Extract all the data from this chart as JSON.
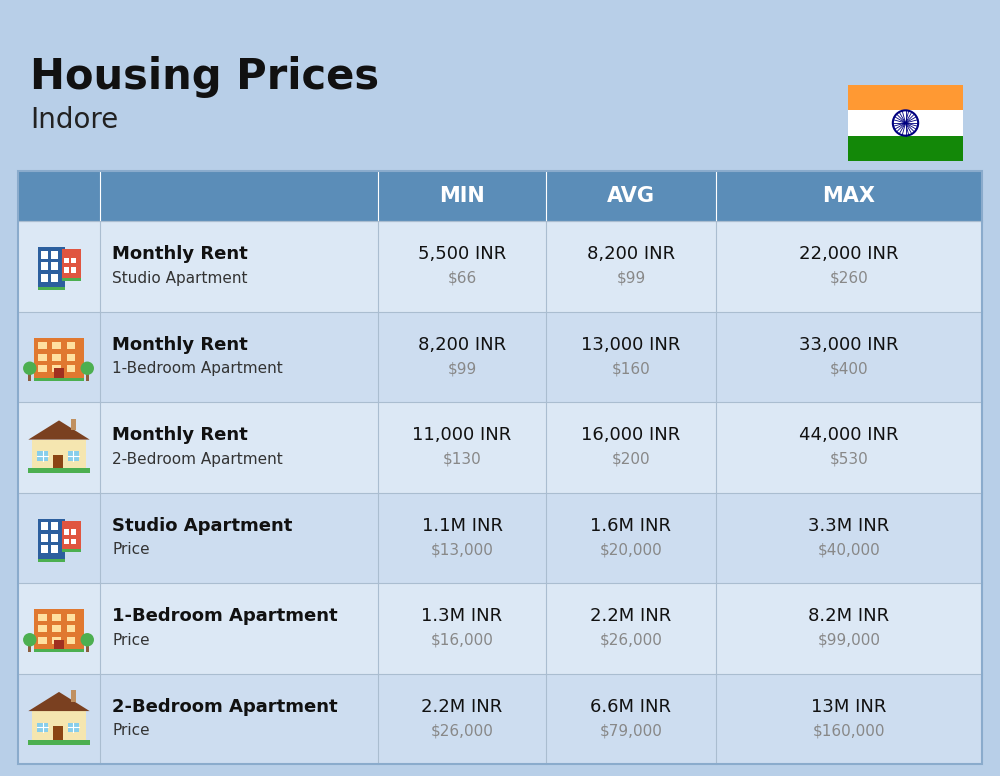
{
  "title": "Housing Prices",
  "subtitle": "Indore",
  "bg_color": "#b8cfe8",
  "header_bg": "#5b8db8",
  "header_text_color": "#ffffff",
  "row_bg_even": "#dce8f5",
  "row_bg_odd": "#cdddf0",
  "grid_line_color": "#aabdd0",
  "columns": [
    "MIN",
    "AVG",
    "MAX"
  ],
  "rows": [
    {
      "bold_label": "Monthly Rent",
      "sub_label": "Studio Apartment",
      "min_inr": "5,500 INR",
      "min_usd": "$66",
      "avg_inr": "8,200 INR",
      "avg_usd": "$99",
      "max_inr": "22,000 INR",
      "max_usd": "$260",
      "icon_type": "studio_blue"
    },
    {
      "bold_label": "Monthly Rent",
      "sub_label": "1-Bedroom Apartment",
      "min_inr": "8,200 INR",
      "min_usd": "$99",
      "avg_inr": "13,000 INR",
      "avg_usd": "$160",
      "max_inr": "33,000 INR",
      "max_usd": "$400",
      "icon_type": "bedroom1_orange"
    },
    {
      "bold_label": "Monthly Rent",
      "sub_label": "2-Bedroom Apartment",
      "min_inr": "11,000 INR",
      "min_usd": "$130",
      "avg_inr": "16,000 INR",
      "avg_usd": "$200",
      "max_inr": "44,000 INR",
      "max_usd": "$530",
      "icon_type": "bedroom2_house"
    },
    {
      "bold_label": "Studio Apartment",
      "sub_label": "Price",
      "min_inr": "1.1M INR",
      "min_usd": "$13,000",
      "avg_inr": "1.6M INR",
      "avg_usd": "$20,000",
      "max_inr": "3.3M INR",
      "max_usd": "$40,000",
      "icon_type": "studio_blue"
    },
    {
      "bold_label": "1-Bedroom Apartment",
      "sub_label": "Price",
      "min_inr": "1.3M INR",
      "min_usd": "$16,000",
      "avg_inr": "2.2M INR",
      "avg_usd": "$26,000",
      "max_inr": "8.2M INR",
      "max_usd": "$99,000",
      "icon_type": "bedroom1_orange"
    },
    {
      "bold_label": "2-Bedroom Apartment",
      "sub_label": "Price",
      "min_inr": "2.2M INR",
      "min_usd": "$26,000",
      "avg_inr": "6.6M INR",
      "avg_usd": "$79,000",
      "max_inr": "13M INR",
      "max_usd": "$160,000",
      "icon_type": "bedroom2_house"
    }
  ],
  "fig_width": 10.0,
  "fig_height": 7.76,
  "dpi": 100
}
